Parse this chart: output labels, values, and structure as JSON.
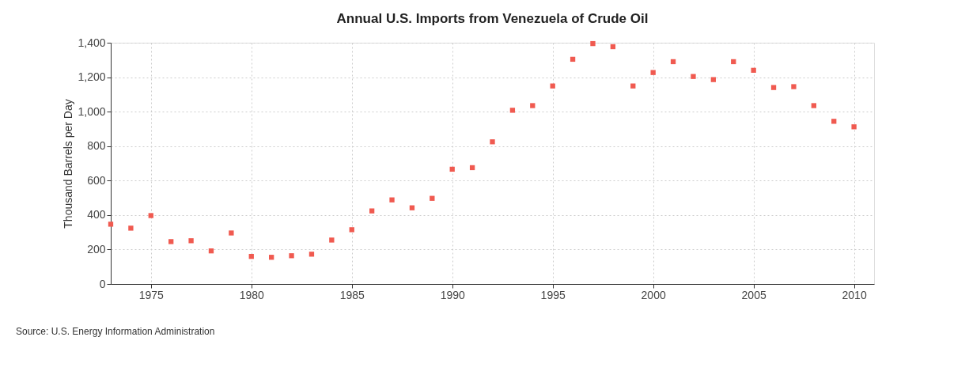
{
  "chart_data": {
    "type": "scatter",
    "title": "Annual U.S. Imports from Venezuela of Crude Oil",
    "ylabel": "Thousand Barrels per Day",
    "x": [
      1973,
      1974,
      1975,
      1976,
      1977,
      1978,
      1979,
      1980,
      1981,
      1982,
      1983,
      1984,
      1985,
      1986,
      1987,
      1988,
      1989,
      1990,
      1991,
      1992,
      1993,
      1994,
      1995,
      1996,
      1997,
      1998,
      1999,
      2000,
      2001,
      2002,
      2003,
      2004,
      2005,
      2006,
      2007,
      2008,
      2009,
      2010
    ],
    "series": [
      {
        "color": "#f05a50",
        "values": [
          347,
          324,
          397,
          246,
          251,
          192,
          296,
          160,
          155,
          164,
          173,
          255,
          315,
          424,
          488,
          442,
          497,
          666,
          675,
          825,
          1008,
          1035,
          1149,
          1304,
          1395,
          1377,
          1149,
          1227,
          1290,
          1204,
          1186,
          1290,
          1240,
          1140,
          1145,
          1035,
          944,
          912
        ]
      }
    ],
    "xlim": [
      1973,
      2011
    ],
    "xticks": [
      1975,
      1980,
      1985,
      1990,
      1995,
      2000,
      2005,
      2010
    ],
    "ylim": [
      0,
      1400
    ],
    "yticks": [
      {
        "value": 0,
        "label": "0"
      },
      {
        "value": 200,
        "label": "200"
      },
      {
        "value": 400,
        "label": "400"
      },
      {
        "value": 600,
        "label": "600"
      },
      {
        "value": 800,
        "label": "800"
      },
      {
        "value": 1000,
        "label": "1,000"
      },
      {
        "value": 1200,
        "label": "1,200"
      },
      {
        "value": 1400,
        "label": "1,400"
      }
    ],
    "grid": true,
    "marker": "square",
    "legend": false,
    "annotations": [
      "Source: U.S. Energy Information Administration"
    ]
  }
}
